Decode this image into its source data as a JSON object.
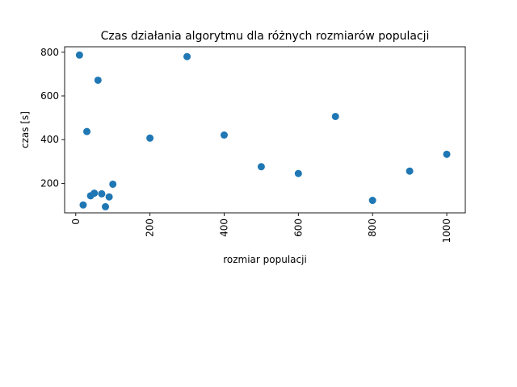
{
  "chart_data": {
    "type": "scatter",
    "title": "Czas działania algorytmu dla różnych rozmiarów populacji",
    "xlabel": "rozmiar populacji",
    "ylabel": "czas [s]",
    "xlim": [
      -30,
      1050
    ],
    "ylim": [
      65,
      825
    ],
    "xticks": [
      0,
      200,
      400,
      600,
      800,
      1000
    ],
    "yticks": [
      200,
      400,
      600,
      800
    ],
    "xtick_rotation": 90,
    "grid": false,
    "marker_color": "#1f77b4",
    "points": [
      {
        "x": 10,
        "y": 787
      },
      {
        "x": 20,
        "y": 101
      },
      {
        "x": 30,
        "y": 437
      },
      {
        "x": 40,
        "y": 143
      },
      {
        "x": 50,
        "y": 155
      },
      {
        "x": 60,
        "y": 672
      },
      {
        "x": 70,
        "y": 152
      },
      {
        "x": 80,
        "y": 93
      },
      {
        "x": 90,
        "y": 138
      },
      {
        "x": 100,
        "y": 196
      },
      {
        "x": 200,
        "y": 407
      },
      {
        "x": 300,
        "y": 780
      },
      {
        "x": 400,
        "y": 421
      },
      {
        "x": 500,
        "y": 276
      },
      {
        "x": 600,
        "y": 245
      },
      {
        "x": 700,
        "y": 506
      },
      {
        "x": 800,
        "y": 122
      },
      {
        "x": 900,
        "y": 256
      },
      {
        "x": 1000,
        "y": 333
      }
    ]
  }
}
